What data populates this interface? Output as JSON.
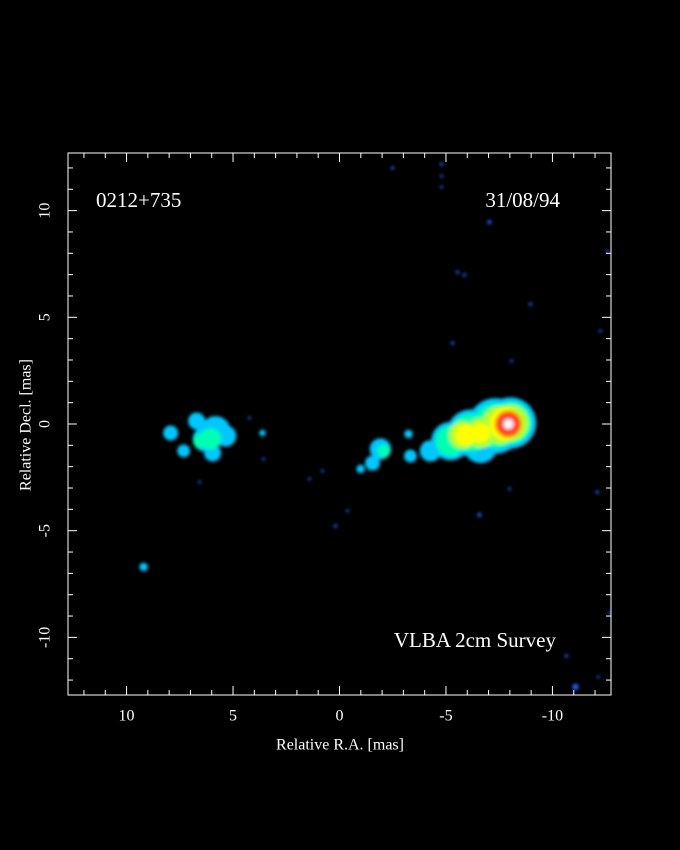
{
  "chart_data": {
    "type": "image",
    "xlabel": "Relative R.A. [mas]",
    "ylabel": "Relative Decl. [mas]",
    "annotations": [
      "0212+735",
      "31/08/94",
      "VLBA 2cm Survey"
    ],
    "xlim": [
      12.75,
      -12.75
    ],
    "ylim": [
      -12.7,
      12.7
    ],
    "xticks": [
      10,
      5,
      0,
      -5,
      -10
    ],
    "yticks": [
      -10,
      -5,
      0,
      5,
      10
    ],
    "xminorticks": [
      12,
      11,
      9,
      8,
      7,
      6,
      4,
      3,
      2,
      1,
      -1,
      -2,
      -3,
      -4,
      -6,
      -7,
      -8,
      -9,
      -11,
      -12
    ],
    "yminorticks": [
      -12,
      -11,
      -9,
      -8,
      -7,
      -6,
      -4,
      -3,
      -2,
      -1,
      1,
      2,
      3,
      4,
      6,
      7,
      8,
      9,
      11,
      12
    ],
    "series": [
      {
        "color": "#2060ff",
        "x": [
          -2.49,
          -4.79,
          -4.79,
          -4.79,
          -7.04,
          -5.54,
          -5.87,
          -8.97,
          -5.31,
          -12.58,
          -12.25,
          -8.08,
          -12.11,
          -7.98,
          -6.57,
          0.19,
          0.8,
          1.41,
          4.23,
          3.57,
          6.57,
          -10.66,
          -11.08,
          -12.16,
          -12.68,
          -0.38
        ],
        "y": [
          11.99,
          12.18,
          11.62,
          11.1,
          9.46,
          7.12,
          6.98,
          5.62,
          3.79,
          8.1,
          4.36,
          2.95,
          -3.19,
          -3.04,
          -4.26,
          -4.78,
          -2.2,
          -2.58,
          0.28,
          -1.64,
          -2.72,
          -10.87,
          -12.32,
          -11.85,
          -8.85,
          -4.07
        ],
        "sizes": [
          0.08,
          0.08,
          0.06,
          0.06,
          0.1,
          0.08,
          0.08,
          0.08,
          0.08,
          0.06,
          0.05,
          0.05,
          0.08,
          0.05,
          0.1,
          0.08,
          0.05,
          0.05,
          0.05,
          0.05,
          0.05,
          0.08,
          0.15,
          0.05,
          0.05,
          0.05
        ]
      },
      {
        "color": "#00c8ff",
        "x": [
          7.93,
          7.32,
          6.71,
          6.29,
          5.82,
          5.35,
          5.96,
          3.62,
          9.2,
          -1.92,
          -1.55,
          -3.24,
          -3.33,
          -0.99,
          -4.27,
          -5.21,
          -6.15,
          -7.32,
          -8.03,
          -6.62
        ],
        "y": [
          -0.42,
          -1.26,
          0.14,
          -0.7,
          -0.33,
          -0.56,
          -1.36,
          -0.42,
          -6.7,
          -1.17,
          -1.83,
          -0.47,
          -1.5,
          -2.11,
          -1.26,
          -0.8,
          -0.42,
          -0.09,
          0.05,
          -1.03
        ],
        "sizes": [
          0.35,
          0.3,
          0.4,
          0.6,
          0.7,
          0.5,
          0.4,
          0.15,
          0.2,
          0.5,
          0.35,
          0.2,
          0.3,
          0.2,
          0.5,
          0.9,
          1.1,
          1.3,
          1.2,
          0.8
        ]
      },
      {
        "color": "#00ffb0",
        "x": [
          6.06,
          6.53,
          -2.07,
          -5.21,
          -6.15,
          -7.32,
          -8.03
        ],
        "y": [
          -0.7,
          -0.8,
          -1.26,
          -0.8,
          -0.42,
          -0.09,
          0.05
        ],
        "sizes": [
          0.5,
          0.35,
          0.3,
          0.7,
          0.9,
          1.05,
          1.0
        ]
      },
      {
        "color": "#b0ff30",
        "x": [
          -5.77,
          -6.62,
          -7.56,
          -8.03
        ],
        "y": [
          -0.52,
          -0.42,
          -0.05,
          0.05
        ],
        "sizes": [
          0.65,
          0.7,
          0.9,
          0.85
        ]
      },
      {
        "color": "#ffff00",
        "x": [
          -5.92,
          -6.62,
          -7.79
        ],
        "y": [
          -0.52,
          -0.42,
          0
        ],
        "sizes": [
          0.5,
          0.45,
          0.75
        ]
      },
      {
        "color": "#ff9000",
        "x": [
          -7.93
        ],
        "y": [
          0
        ],
        "sizes": [
          0.65
        ]
      },
      {
        "color": "#ff2020",
        "x": [
          -7.93
        ],
        "y": [
          0
        ],
        "sizes": [
          0.5
        ]
      },
      {
        "color": "#ffb0b0",
        "x": [
          -7.93
        ],
        "y": [
          0
        ],
        "sizes": [
          0.3
        ]
      },
      {
        "color": "#ffffff",
        "x": [
          -7.93
        ],
        "y": [
          0
        ],
        "sizes": [
          0.18
        ]
      }
    ]
  }
}
